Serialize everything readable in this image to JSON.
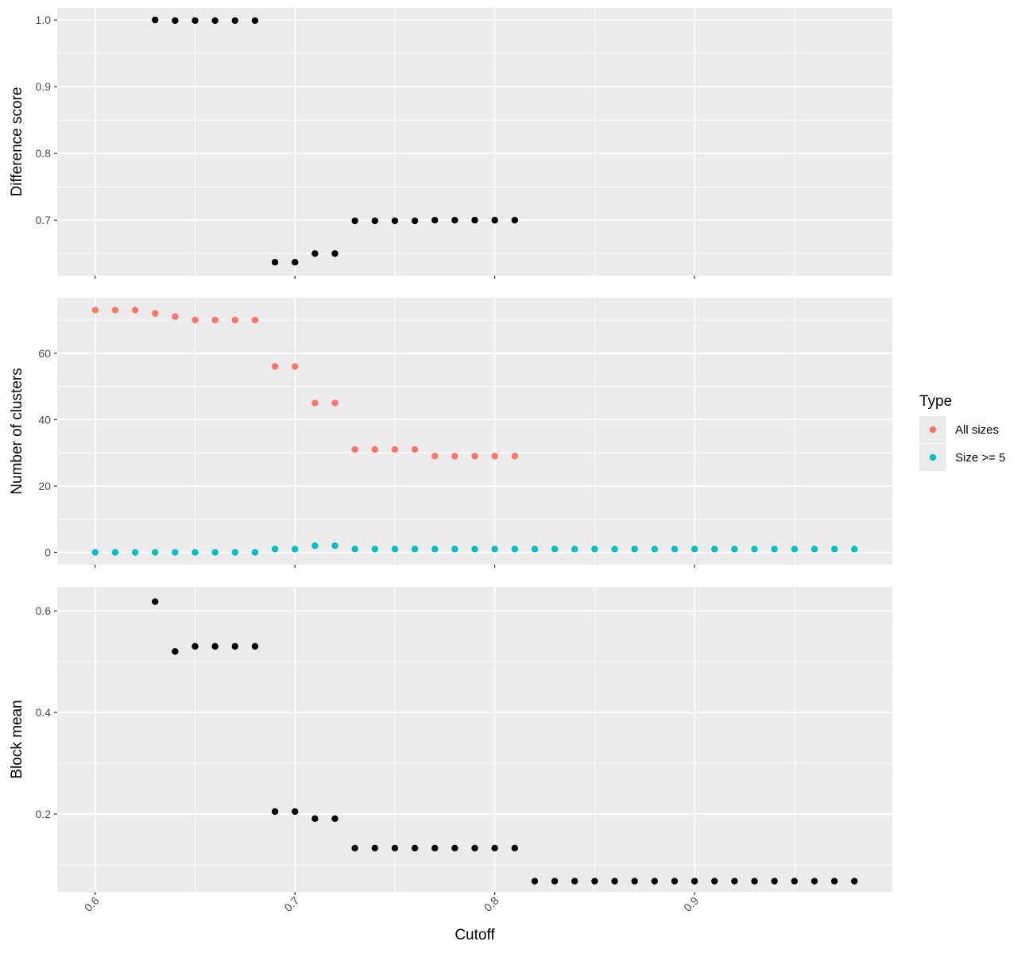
{
  "chart_data": {
    "type": "scatter",
    "xlabel": "Cutoff",
    "x_ticks": [
      0.6,
      0.7,
      0.8,
      0.9
    ],
    "xlim": [
      0.581,
      0.999
    ],
    "panels": [
      {
        "ylabel": "Difference score",
        "ylim": [
          0.617,
          1.018
        ],
        "y_ticks": [
          0.7,
          0.8,
          0.9,
          1.0
        ],
        "y_tick_labels": [
          "0.7",
          "0.8",
          "0.9",
          "1.0"
        ],
        "series": [
          {
            "color": "#000000",
            "x": [
              0.63,
              0.64,
              0.65,
              0.66,
              0.67,
              0.68,
              0.69,
              0.7,
              0.71,
              0.72,
              0.73,
              0.74,
              0.75,
              0.76,
              0.77,
              0.78,
              0.79,
              0.8,
              0.81
            ],
            "y": [
              1.0,
              0.999,
              0.999,
              0.999,
              0.999,
              0.999,
              0.637,
              0.637,
              0.65,
              0.65,
              0.699,
              0.699,
              0.699,
              0.699,
              0.7,
              0.7,
              0.7,
              0.7,
              0.7
            ]
          }
        ]
      },
      {
        "ylabel": "Number of clusters",
        "ylim": [
          -3.7,
          76.7
        ],
        "y_ticks": [
          0,
          20,
          40,
          60
        ],
        "y_tick_labels": [
          "0",
          "20",
          "40",
          "60"
        ],
        "series": [
          {
            "name": "All sizes",
            "color": "#F8766D",
            "x": [
              0.6,
              0.61,
              0.62,
              0.63,
              0.64,
              0.65,
              0.66,
              0.67,
              0.68,
              0.69,
              0.7,
              0.71,
              0.72,
              0.73,
              0.74,
              0.75,
              0.76,
              0.77,
              0.78,
              0.79,
              0.8,
              0.81
            ],
            "y": [
              73,
              73,
              73,
              72,
              71,
              70,
              70,
              70,
              70,
              56,
              56,
              45,
              45,
              31,
              31,
              31,
              31,
              29,
              29,
              29,
              29,
              29
            ]
          },
          {
            "name": "Size >= 5",
            "color": "#00BFC4",
            "x": [
              0.6,
              0.61,
              0.62,
              0.63,
              0.64,
              0.65,
              0.66,
              0.67,
              0.68,
              0.69,
              0.7,
              0.71,
              0.72,
              0.73,
              0.74,
              0.75,
              0.76,
              0.77,
              0.78,
              0.79,
              0.8,
              0.81,
              0.82,
              0.83,
              0.84,
              0.85,
              0.86,
              0.87,
              0.88,
              0.89,
              0.9,
              0.91,
              0.92,
              0.93,
              0.94,
              0.95,
              0.96,
              0.97,
              0.98
            ],
            "y": [
              0,
              0,
              0,
              0,
              0,
              0,
              0,
              0,
              0,
              1,
              1,
              2,
              2,
              1,
              1,
              1,
              1,
              1,
              1,
              1,
              1,
              1,
              1,
              1,
              1,
              1,
              1,
              1,
              1,
              1,
              1,
              1,
              1,
              1,
              1,
              1,
              1,
              1,
              1
            ]
          }
        ]
      },
      {
        "ylabel": "Block mean",
        "ylim": [
          0.047,
          0.647
        ],
        "y_ticks": [
          0.2,
          0.4,
          0.6
        ],
        "y_tick_labels": [
          "0.2",
          "0.4",
          "0.6"
        ],
        "series": [
          {
            "color": "#000000",
            "x": [
              0.63,
              0.64,
              0.65,
              0.66,
              0.67,
              0.68,
              0.69,
              0.7,
              0.71,
              0.72,
              0.73,
              0.74,
              0.75,
              0.76,
              0.77,
              0.78,
              0.79,
              0.8,
              0.81,
              0.82,
              0.83,
              0.84,
              0.85,
              0.86,
              0.87,
              0.88,
              0.89,
              0.9,
              0.91,
              0.92,
              0.93,
              0.94,
              0.95,
              0.96,
              0.97,
              0.98
            ],
            "y": [
              0.618,
              0.52,
              0.53,
              0.53,
              0.53,
              0.53,
              0.205,
              0.205,
              0.191,
              0.191,
              0.133,
              0.133,
              0.133,
              0.133,
              0.133,
              0.133,
              0.133,
              0.133,
              0.133,
              0.068,
              0.068,
              0.068,
              0.068,
              0.068,
              0.068,
              0.068,
              0.068,
              0.068,
              0.068,
              0.068,
              0.068,
              0.068,
              0.068,
              0.068,
              0.068,
              0.068
            ]
          }
        ]
      }
    ],
    "legend": {
      "title": "Type",
      "placement": "right",
      "items": [
        {
          "label": "All sizes",
          "color": "#F8766D"
        },
        {
          "label": "Size >= 5",
          "color": "#00BFC4"
        }
      ]
    },
    "grid": true,
    "panel_background": "#EBEBEB",
    "gridline_color": "#FFFFFF"
  }
}
